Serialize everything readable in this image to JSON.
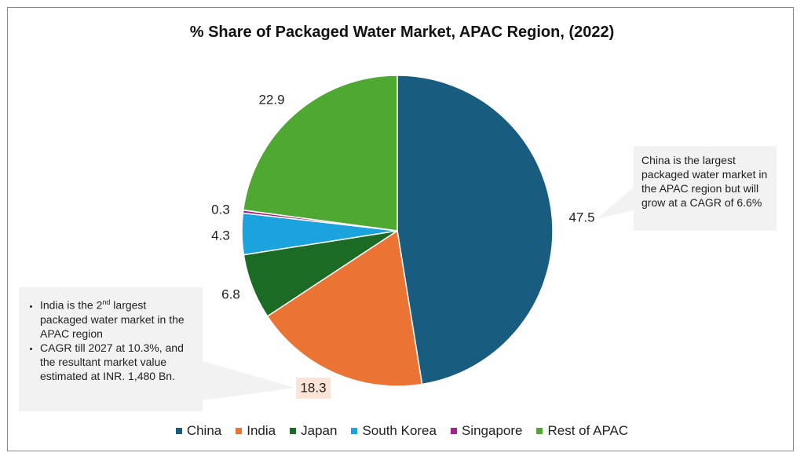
{
  "chart_data": {
    "type": "pie",
    "title": "% Share of Packaged Water Market, APAC Region, (2022)",
    "slices": [
      {
        "name": "China",
        "value": 47.5,
        "label": "47.5",
        "color": "#185c80"
      },
      {
        "name": "India",
        "value": 18.3,
        "label": "18.3",
        "color": "#eb7434"
      },
      {
        "name": "Japan",
        "value": 6.8,
        "label": "6.8",
        "color": "#1c6b25"
      },
      {
        "name": "South Korea",
        "value": 4.3,
        "label": "4.3",
        "color": "#1aa3dd"
      },
      {
        "name": "Singapore",
        "value": 0.3,
        "label": "0.3",
        "color": "#a3238e"
      },
      {
        "name": "Rest of APAC",
        "value": 22.9,
        "label": "22.9",
        "color": "#4fa832"
      }
    ],
    "legend_position": "bottom",
    "highlight_label_color": "#fbe3d6"
  },
  "annotations": {
    "china": "China is the largest packaged water market in the APAC region but will grow at a CAGR of 6.6%",
    "india": {
      "bullet1_pre": "India is the 2",
      "bullet1_sup": "nd",
      "bullet1_post": " largest packaged water market in the APAC region",
      "bullet2": "CAGR till 2027 at 10.3%, and the resultant market value estimated at INR. 1,480 Bn."
    }
  }
}
